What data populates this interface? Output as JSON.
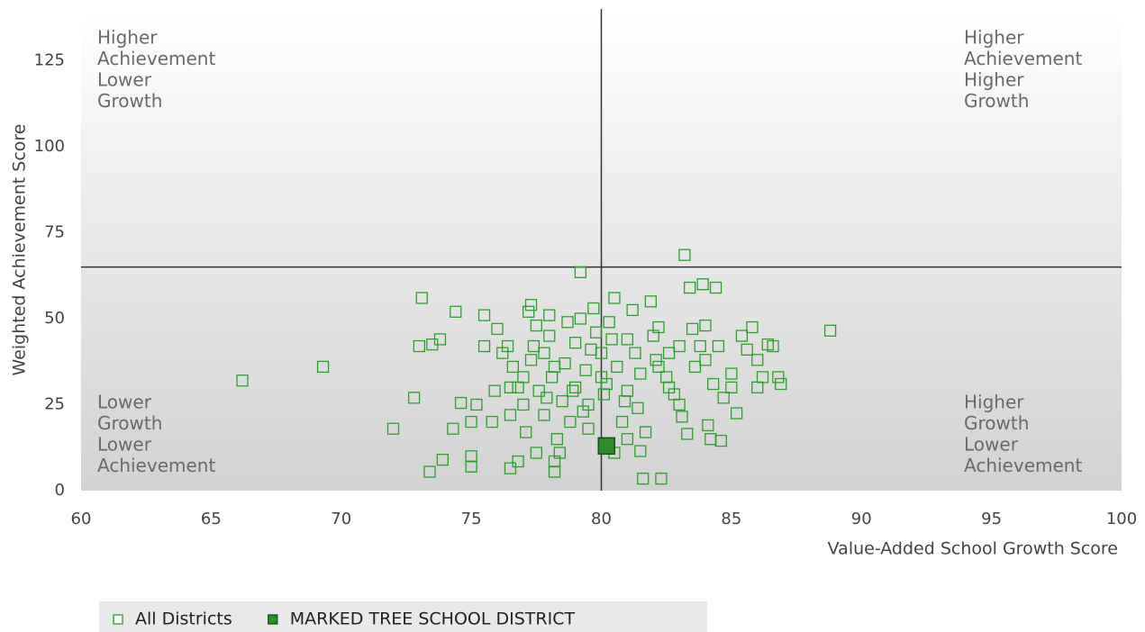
{
  "chart_data": {
    "type": "scatter",
    "x_label": "Value-Added School Growth Score",
    "y_label": "Weighted Achievement Score",
    "xlim": [
      60,
      100
    ],
    "ylim": [
      0,
      140
    ],
    "xticks": [
      60,
      65,
      70,
      75,
      80,
      85,
      90,
      95,
      100
    ],
    "yticks": [
      0,
      25,
      50,
      75,
      100,
      125
    ],
    "quadrant_lines": {
      "x": 80,
      "y": 65
    },
    "quadrant_labels": {
      "top_left": [
        "Higher",
        "Achievement",
        "Lower",
        "Growth"
      ],
      "top_right": [
        "Higher",
        "Achievement",
        "Higher",
        "Growth"
      ],
      "bottom_left": [
        "Lower",
        "Growth",
        "Lower",
        "Achievement"
      ],
      "bottom_right": [
        "Higher",
        "Growth",
        "Lower",
        "Achievement"
      ]
    },
    "legend": "bottom-left",
    "series": [
      {
        "name": "All Districts",
        "color": "#2e9e2e",
        "marker": "hollow",
        "x": [
          66.2,
          69.3,
          72,
          72.8,
          73.1,
          73,
          73.5,
          73.8,
          73.4,
          73.9,
          74.3,
          74.6,
          74.4,
          75,
          75,
          75,
          75.2,
          75.5,
          75.5,
          75.8,
          76,
          75.9,
          76.2,
          76.4,
          76.5,
          76.5,
          76.5,
          76.8,
          76.6,
          77,
          77,
          77.1,
          77.2,
          77.3,
          77.5,
          77.5,
          77.3,
          77.6,
          77.8,
          78,
          78,
          78.1,
          78.2,
          78.2,
          78.3,
          78.4,
          78.5,
          78.6,
          78.7,
          78.8,
          79,
          79,
          79.2,
          79.2,
          79.4,
          79.5,
          79.5,
          79.7,
          79.8,
          80,
          80,
          80.1,
          80.3,
          80.4,
          80.5,
          80.5,
          80.6,
          80.8,
          81,
          81,
          81.2,
          81.3,
          81.4,
          81.5,
          81.6,
          81.7,
          81.9,
          82,
          82.1,
          82.2,
          82.3,
          82.5,
          82.6,
          82.8,
          83,
          83.1,
          83.2,
          83.3,
          83.4,
          83.5,
          83.6,
          83.8,
          83.9,
          84,
          84.1,
          84.2,
          84.3,
          84.4,
          84.5,
          84.6,
          84.7,
          85,
          85.2,
          85.4,
          85.6,
          85.8,
          86,
          86,
          86.2,
          86.4,
          86.6,
          86.8,
          86.9,
          88.8,
          77.8,
          78.9,
          80.2,
          81.5,
          82.2,
          83,
          79.6,
          78.2,
          77.4,
          81,
          82.6,
          84,
          80.9,
          79.3,
          77.9,
          76.8,
          85
        ],
        "values": [
          32,
          36,
          18,
          27,
          56,
          42,
          42.5,
          44,
          5.5,
          9,
          18,
          25.5,
          52,
          20,
          10,
          7,
          25,
          51,
          42,
          20,
          47,
          29,
          40,
          42,
          30,
          22,
          6.5,
          8.5,
          36,
          33,
          25,
          17,
          52,
          54,
          48,
          11,
          38,
          29,
          22,
          45,
          51,
          33,
          5.5,
          8.5,
          15,
          11,
          26,
          37,
          49,
          20,
          43,
          30,
          63.5,
          50,
          35,
          18,
          25,
          53,
          46,
          40,
          33,
          28,
          49,
          44,
          56,
          11,
          36,
          20,
          15,
          29,
          52.5,
          40,
          24,
          11.5,
          3.5,
          17,
          55,
          45,
          38,
          47.5,
          3.5,
          33,
          40,
          28,
          25,
          21.5,
          68.5,
          16.5,
          59,
          47,
          36,
          42,
          60,
          48,
          19,
          15,
          31,
          59,
          42,
          14.5,
          27,
          34,
          22.5,
          45,
          41,
          47.5,
          38,
          30,
          33,
          42.5,
          42,
          33,
          31,
          46.5,
          40,
          29,
          31,
          34,
          36,
          42,
          41,
          36,
          42,
          44,
          30,
          38,
          26,
          23,
          27,
          30,
          30
        ]
      },
      {
        "name": "MARKED TREE SCHOOL DISTRICT",
        "color": "#2e8b2e",
        "marker": "filled",
        "x": [
          80.2
        ],
        "values": [
          13
        ]
      }
    ]
  }
}
